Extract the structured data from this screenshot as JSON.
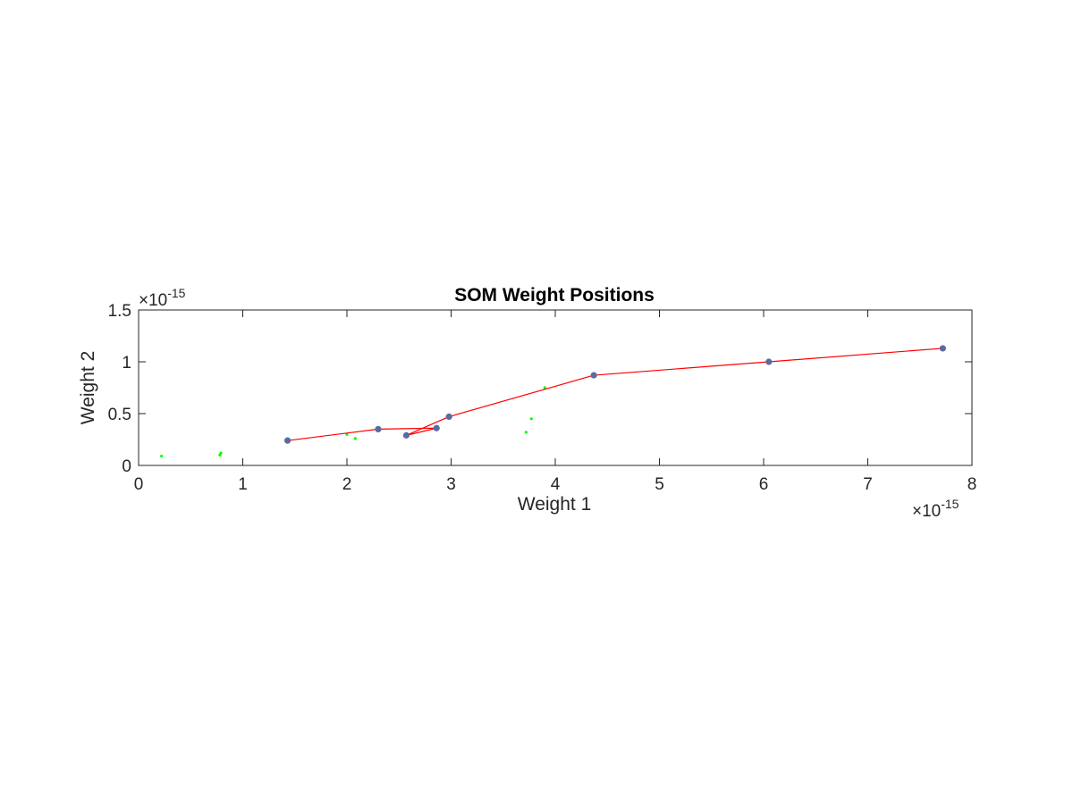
{
  "chart_data": {
    "type": "scatter",
    "title": "SOM Weight Positions",
    "xlabel": "Weight 1",
    "ylabel": "Weight 2",
    "x_exponent_base": "×10",
    "x_exponent_power": "-15",
    "y_exponent_base": "×10",
    "y_exponent_power": "-15",
    "xlim": [
      0,
      8
    ],
    "ylim": [
      0,
      1.5
    ],
    "x_ticks": [
      0,
      1,
      2,
      3,
      4,
      5,
      6,
      7,
      8
    ],
    "y_ticks": [
      0,
      0.5,
      1,
      1.5
    ],
    "x_tick_labels": [
      "0",
      "1",
      "2",
      "3",
      "4",
      "5",
      "6",
      "7",
      "8"
    ],
    "y_tick_labels": [
      "0",
      "0.5",
      "1",
      "1.5"
    ],
    "grid": false,
    "box": true,
    "series": [
      {
        "kind": "points",
        "color": "#00ff00",
        "marker": "dot",
        "points": [
          [
            0.22,
            0.09
          ],
          [
            0.78,
            0.1
          ],
          [
            0.79,
            0.12
          ],
          [
            2.0,
            0.3
          ],
          [
            2.08,
            0.26
          ],
          [
            3.72,
            0.32
          ],
          [
            3.77,
            0.45
          ],
          [
            3.9,
            0.75
          ]
        ]
      },
      {
        "kind": "neurons",
        "color": "#5b6aa0",
        "line_color": "#ff0000",
        "marker": "circle",
        "points": [
          [
            1.43,
            0.24
          ],
          [
            2.3,
            0.35
          ],
          [
            2.57,
            0.29
          ],
          [
            2.86,
            0.36
          ],
          [
            2.98,
            0.47
          ],
          [
            4.37,
            0.87
          ],
          [
            6.05,
            1.0
          ],
          [
            7.72,
            1.13
          ]
        ],
        "edges": [
          [
            0,
            1
          ],
          [
            1,
            3
          ],
          [
            3,
            2
          ],
          [
            2,
            4
          ],
          [
            4,
            5
          ],
          [
            5,
            6
          ],
          [
            6,
            7
          ]
        ]
      }
    ]
  }
}
